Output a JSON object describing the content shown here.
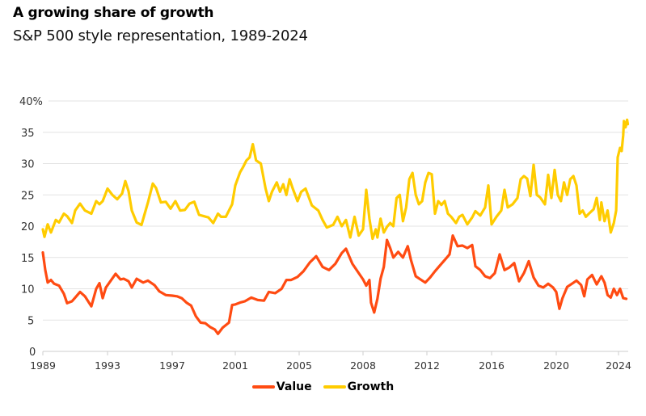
{
  "header": {
    "title": "A growing share of growth",
    "subtitle": "S&P 500 style representation, 1989-2024"
  },
  "colors": {
    "value": "#FF4B12",
    "growth": "#FFCC00",
    "grid": "#e3e3e3",
    "axis": "#cccccc"
  },
  "legend": [
    {
      "name": "Value",
      "color_key": "value"
    },
    {
      "name": "Growth",
      "color_key": "growth"
    }
  ],
  "chart_data": {
    "type": "line",
    "title": "A growing share of growth",
    "subtitle": "S&P 500 style representation, 1989-2024",
    "xlabel": "",
    "ylabel": "",
    "ylim": [
      0,
      40
    ],
    "yticks": [
      0,
      5,
      10,
      15,
      20,
      25,
      30,
      35,
      40
    ],
    "ytick_labels": [
      "0",
      "5",
      "10",
      "15",
      "20",
      "25",
      "30",
      "35",
      "40%"
    ],
    "xticks": [
      1989,
      1993,
      1997,
      2001,
      2005,
      2008,
      2012,
      2016,
      2020,
      2024
    ],
    "xtick_labels": [
      "1989",
      "1993",
      "1997",
      "2001",
      "2005",
      "2008",
      "2012",
      "2016",
      "2020",
      "2024"
    ],
    "xlim": [
      1989,
      2024.6
    ],
    "grid": true,
    "legend_position": "bottom-center",
    "series": [
      {
        "name": "Value",
        "color_key": "value",
        "points": [
          [
            1989.0,
            15.8
          ],
          [
            1989.15,
            13.0
          ],
          [
            1989.3,
            11.0
          ],
          [
            1989.5,
            11.4
          ],
          [
            1989.7,
            10.8
          ],
          [
            1990.0,
            10.5
          ],
          [
            1990.3,
            9.2
          ],
          [
            1990.5,
            7.7
          ],
          [
            1990.8,
            8.0
          ],
          [
            1991.0,
            8.6
          ],
          [
            1991.3,
            9.5
          ],
          [
            1991.6,
            8.8
          ],
          [
            1992.0,
            7.2
          ],
          [
            1992.3,
            10.0
          ],
          [
            1992.5,
            10.9
          ],
          [
            1992.7,
            8.5
          ],
          [
            1992.9,
            10.2
          ],
          [
            1993.2,
            11.3
          ],
          [
            1993.5,
            12.4
          ],
          [
            1993.8,
            11.5
          ],
          [
            1994.0,
            11.6
          ],
          [
            1994.3,
            11.2
          ],
          [
            1994.5,
            10.2
          ],
          [
            1994.8,
            11.6
          ],
          [
            1995.2,
            11.0
          ],
          [
            1995.5,
            11.3
          ],
          [
            1995.9,
            10.6
          ],
          [
            1996.2,
            9.6
          ],
          [
            1996.6,
            9.0
          ],
          [
            1997.0,
            8.9
          ],
          [
            1997.3,
            8.8
          ],
          [
            1997.6,
            8.5
          ],
          [
            1997.9,
            7.8
          ],
          [
            1998.2,
            7.3
          ],
          [
            1998.5,
            5.6
          ],
          [
            1998.8,
            4.6
          ],
          [
            1999.1,
            4.5
          ],
          [
            1999.4,
            3.9
          ],
          [
            1999.7,
            3.5
          ],
          [
            1999.9,
            2.8
          ],
          [
            2000.2,
            3.8
          ],
          [
            2000.6,
            4.6
          ],
          [
            2000.8,
            7.4
          ],
          [
            2001.0,
            7.5
          ],
          [
            2001.3,
            7.8
          ],
          [
            2001.6,
            8.0
          ],
          [
            2002.0,
            8.6
          ],
          [
            2002.4,
            8.2
          ],
          [
            2002.8,
            8.1
          ],
          [
            2003.1,
            9.5
          ],
          [
            2003.5,
            9.3
          ],
          [
            2003.9,
            10.0
          ],
          [
            2004.2,
            11.4
          ],
          [
            2004.5,
            11.4
          ],
          [
            2004.9,
            11.9
          ],
          [
            2005.2,
            12.8
          ],
          [
            2005.5,
            14.2
          ],
          [
            2005.8,
            15.2
          ],
          [
            2006.1,
            13.5
          ],
          [
            2006.4,
            13.0
          ],
          [
            2006.7,
            14.0
          ],
          [
            2007.0,
            15.7
          ],
          [
            2007.2,
            16.4
          ],
          [
            2007.5,
            14.0
          ],
          [
            2007.8,
            12.5
          ],
          [
            2008.0,
            11.5
          ],
          [
            2008.2,
            10.5
          ],
          [
            2008.4,
            11.4
          ],
          [
            2008.5,
            7.8
          ],
          [
            2008.7,
            6.2
          ],
          [
            2008.9,
            8.4
          ],
          [
            2009.1,
            11.6
          ],
          [
            2009.3,
            13.5
          ],
          [
            2009.5,
            17.8
          ],
          [
            2009.7,
            16.5
          ],
          [
            2009.9,
            15.0
          ],
          [
            2010.2,
            15.9
          ],
          [
            2010.5,
            15.0
          ],
          [
            2010.8,
            16.8
          ],
          [
            2011.0,
            14.6
          ],
          [
            2011.3,
            12.0
          ],
          [
            2011.6,
            11.5
          ],
          [
            2011.9,
            11.0
          ],
          [
            2012.2,
            11.8
          ],
          [
            2012.5,
            12.8
          ],
          [
            2012.8,
            13.7
          ],
          [
            2013.1,
            14.6
          ],
          [
            2013.4,
            15.5
          ],
          [
            2013.6,
            18.5
          ],
          [
            2013.9,
            16.8
          ],
          [
            2014.2,
            16.9
          ],
          [
            2014.5,
            16.5
          ],
          [
            2014.8,
            17.0
          ],
          [
            2015.0,
            13.6
          ],
          [
            2015.3,
            13.0
          ],
          [
            2015.6,
            12.0
          ],
          [
            2015.9,
            11.7
          ],
          [
            2016.2,
            12.5
          ],
          [
            2016.5,
            15.5
          ],
          [
            2016.8,
            13.0
          ],
          [
            2017.1,
            13.4
          ],
          [
            2017.4,
            14.1
          ],
          [
            2017.7,
            11.2
          ],
          [
            2018.0,
            12.5
          ],
          [
            2018.3,
            14.4
          ],
          [
            2018.6,
            11.8
          ],
          [
            2018.9,
            10.5
          ],
          [
            2019.2,
            10.2
          ],
          [
            2019.5,
            10.8
          ],
          [
            2019.8,
            10.2
          ],
          [
            2020.0,
            9.5
          ],
          [
            2020.2,
            6.8
          ],
          [
            2020.4,
            8.5
          ],
          [
            2020.7,
            10.3
          ],
          [
            2021.0,
            10.8
          ],
          [
            2021.3,
            11.3
          ],
          [
            2021.6,
            10.6
          ],
          [
            2021.8,
            8.8
          ],
          [
            2022.0,
            11.5
          ],
          [
            2022.3,
            12.2
          ],
          [
            2022.6,
            10.7
          ],
          [
            2022.9,
            12.0
          ],
          [
            2023.1,
            11.0
          ],
          [
            2023.3,
            9.0
          ],
          [
            2023.5,
            8.6
          ],
          [
            2023.7,
            10.0
          ],
          [
            2023.9,
            9.0
          ],
          [
            2024.1,
            10.0
          ],
          [
            2024.3,
            8.5
          ],
          [
            2024.5,
            8.4
          ]
        ]
      },
      {
        "name": "Growth",
        "color_key": "growth",
        "points": [
          [
            1989.0,
            19.5
          ],
          [
            1989.1,
            18.3
          ],
          [
            1989.3,
            20.3
          ],
          [
            1989.5,
            19.0
          ],
          [
            1989.8,
            21.0
          ],
          [
            1990.0,
            20.6
          ],
          [
            1990.3,
            22.0
          ],
          [
            1990.5,
            21.6
          ],
          [
            1990.8,
            20.5
          ],
          [
            1991.0,
            22.5
          ],
          [
            1991.3,
            23.6
          ],
          [
            1991.6,
            22.5
          ],
          [
            1992.0,
            22.0
          ],
          [
            1992.3,
            24.0
          ],
          [
            1992.5,
            23.5
          ],
          [
            1992.7,
            24.0
          ],
          [
            1993.0,
            26.0
          ],
          [
            1993.3,
            25.0
          ],
          [
            1993.6,
            24.3
          ],
          [
            1993.9,
            25.2
          ],
          [
            1994.1,
            27.2
          ],
          [
            1994.3,
            25.6
          ],
          [
            1994.5,
            22.5
          ],
          [
            1994.8,
            20.6
          ],
          [
            1995.1,
            20.2
          ],
          [
            1995.3,
            22.0
          ],
          [
            1995.5,
            23.8
          ],
          [
            1995.8,
            26.8
          ],
          [
            1996.0,
            26.1
          ],
          [
            1996.3,
            23.8
          ],
          [
            1996.6,
            23.9
          ],
          [
            1996.9,
            22.8
          ],
          [
            1997.2,
            24.0
          ],
          [
            1997.5,
            22.5
          ],
          [
            1997.8,
            22.6
          ],
          [
            1998.1,
            23.6
          ],
          [
            1998.4,
            23.9
          ],
          [
            1998.7,
            21.8
          ],
          [
            1999.0,
            21.6
          ],
          [
            1999.3,
            21.4
          ],
          [
            1999.6,
            20.5
          ],
          [
            1999.9,
            22.0
          ],
          [
            2000.1,
            21.5
          ],
          [
            2000.4,
            21.5
          ],
          [
            2000.8,
            23.5
          ],
          [
            2001.0,
            26.5
          ],
          [
            2001.3,
            28.6
          ],
          [
            2001.5,
            29.5
          ],
          [
            2001.7,
            30.5
          ],
          [
            2001.9,
            31.0
          ],
          [
            2002.1,
            33.1
          ],
          [
            2002.3,
            30.5
          ],
          [
            2002.6,
            30.0
          ],
          [
            2002.9,
            26.0
          ],
          [
            2003.1,
            24.0
          ],
          [
            2003.3,
            25.5
          ],
          [
            2003.6,
            27.0
          ],
          [
            2003.8,
            25.5
          ],
          [
            2004.0,
            26.7
          ],
          [
            2004.2,
            25.0
          ],
          [
            2004.4,
            27.5
          ],
          [
            2004.6,
            26.0
          ],
          [
            2004.9,
            24.0
          ],
          [
            2005.1,
            25.5
          ],
          [
            2005.3,
            26.0
          ],
          [
            2005.6,
            23.3
          ],
          [
            2005.9,
            22.5
          ],
          [
            2006.1,
            21.0
          ],
          [
            2006.3,
            19.8
          ],
          [
            2006.6,
            20.2
          ],
          [
            2006.8,
            21.5
          ],
          [
            2007.0,
            20.0
          ],
          [
            2007.2,
            21.0
          ],
          [
            2007.4,
            18.2
          ],
          [
            2007.6,
            21.5
          ],
          [
            2007.8,
            18.5
          ],
          [
            2008.0,
            19.5
          ],
          [
            2008.2,
            25.8
          ],
          [
            2008.4,
            21.2
          ],
          [
            2008.6,
            18.0
          ],
          [
            2008.8,
            19.5
          ],
          [
            2008.9,
            18.2
          ],
          [
            2009.1,
            21.2
          ],
          [
            2009.3,
            19.0
          ],
          [
            2009.5,
            19.9
          ],
          [
            2009.7,
            20.5
          ],
          [
            2009.9,
            20.0
          ],
          [
            2010.1,
            24.5
          ],
          [
            2010.3,
            25.0
          ],
          [
            2010.5,
            20.8
          ],
          [
            2010.7,
            23.0
          ],
          [
            2010.9,
            27.5
          ],
          [
            2011.1,
            28.5
          ],
          [
            2011.3,
            25.0
          ],
          [
            2011.5,
            23.5
          ],
          [
            2011.7,
            24.0
          ],
          [
            2011.9,
            27.0
          ],
          [
            2012.1,
            28.5
          ],
          [
            2012.3,
            28.3
          ],
          [
            2012.5,
            22.0
          ],
          [
            2012.7,
            24.0
          ],
          [
            2012.9,
            23.4
          ],
          [
            2013.1,
            24.0
          ],
          [
            2013.3,
            22.0
          ],
          [
            2013.5,
            21.5
          ],
          [
            2013.8,
            20.5
          ],
          [
            2014.0,
            21.5
          ],
          [
            2014.2,
            21.8
          ],
          [
            2014.5,
            20.3
          ],
          [
            2014.8,
            21.4
          ],
          [
            2015.0,
            22.4
          ],
          [
            2015.3,
            21.7
          ],
          [
            2015.6,
            23.0
          ],
          [
            2015.8,
            26.5
          ],
          [
            2016.0,
            20.3
          ],
          [
            2016.3,
            21.5
          ],
          [
            2016.6,
            22.5
          ],
          [
            2016.8,
            25.8
          ],
          [
            2017.0,
            23.0
          ],
          [
            2017.3,
            23.5
          ],
          [
            2017.6,
            24.5
          ],
          [
            2017.8,
            27.5
          ],
          [
            2018.0,
            28.0
          ],
          [
            2018.2,
            27.6
          ],
          [
            2018.4,
            24.8
          ],
          [
            2018.6,
            29.8
          ],
          [
            2018.8,
            25.0
          ],
          [
            2019.0,
            24.6
          ],
          [
            2019.3,
            23.5
          ],
          [
            2019.5,
            28.2
          ],
          [
            2019.7,
            24.5
          ],
          [
            2019.9,
            29.0
          ],
          [
            2020.1,
            25.0
          ],
          [
            2020.3,
            24.0
          ],
          [
            2020.5,
            27.0
          ],
          [
            2020.7,
            25.0
          ],
          [
            2020.9,
            27.5
          ],
          [
            2021.1,
            28.0
          ],
          [
            2021.3,
            26.5
          ],
          [
            2021.5,
            22.0
          ],
          [
            2021.7,
            22.5
          ],
          [
            2021.9,
            21.5
          ],
          [
            2022.1,
            22.0
          ],
          [
            2022.4,
            22.7
          ],
          [
            2022.6,
            24.5
          ],
          [
            2022.8,
            21.0
          ],
          [
            2022.9,
            23.8
          ],
          [
            2023.1,
            20.8
          ],
          [
            2023.3,
            22.5
          ],
          [
            2023.5,
            19.0
          ],
          [
            2023.7,
            20.5
          ],
          [
            2023.85,
            22.5
          ],
          [
            2023.95,
            31.0
          ],
          [
            2024.1,
            32.5
          ],
          [
            2024.2,
            32.0
          ],
          [
            2024.3,
            34.5
          ],
          [
            2024.35,
            36.8
          ],
          [
            2024.45,
            35.8
          ],
          [
            2024.55,
            37.0
          ],
          [
            2024.6,
            36.3
          ]
        ]
      }
    ]
  }
}
